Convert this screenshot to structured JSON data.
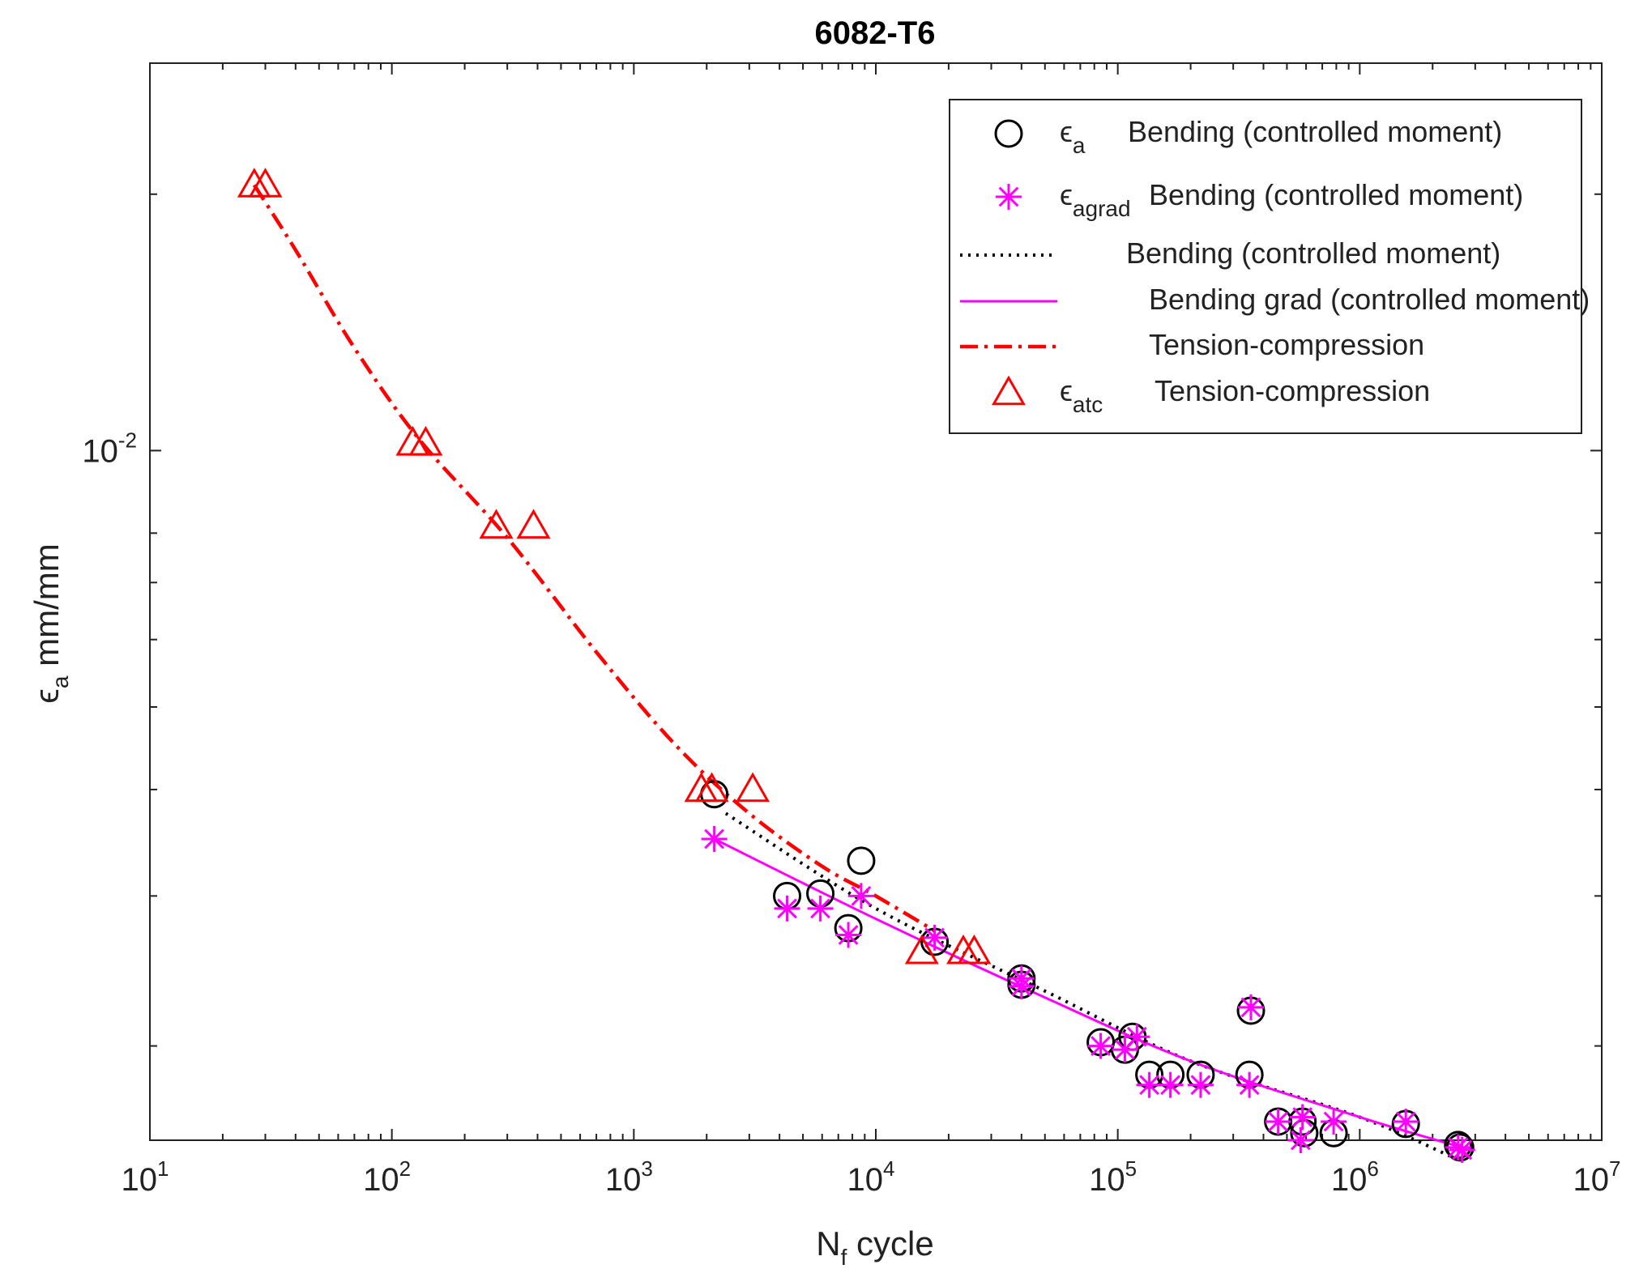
{
  "chart_data": {
    "type": "scatter",
    "title": "6082-T6",
    "xlabel": {
      "main": "N",
      "sub": "f",
      "rest": " cycle"
    },
    "ylabel": {
      "main": "ϵ",
      "sub": "a",
      "rest": " mm/mm"
    },
    "xscale": "log",
    "yscale": "log",
    "xlim": [
      10,
      10000000
    ],
    "ylim": [
      0.00155,
      0.0285
    ],
    "x_ticks": [
      {
        "value": 10,
        "base": "10",
        "exp": "1"
      },
      {
        "value": 100,
        "base": "10",
        "exp": "2"
      },
      {
        "value": 1000,
        "base": "10",
        "exp": "3"
      },
      {
        "value": 10000,
        "base": "10",
        "exp": "4"
      },
      {
        "value": 100000,
        "base": "10",
        "exp": "5"
      },
      {
        "value": 1000000,
        "base": "10",
        "exp": "6"
      },
      {
        "value": 10000000,
        "base": "10",
        "exp": "7"
      }
    ],
    "y_ticks": [
      {
        "value": 0.01,
        "base": "10",
        "exp": "-2"
      }
    ],
    "y_minor_ticks": [
      0.002,
      0.003,
      0.004,
      0.005,
      0.006,
      0.007,
      0.008,
      0.02
    ],
    "grid": false,
    "legend_position": "top-right",
    "series": [
      {
        "name": "Bending (controlled moment)",
        "legend_symbol": "ϵ",
        "legend_sub": "a",
        "marker": "circle",
        "color": "#000000",
        "points": [
          [
            2150,
            0.00395
          ],
          [
            4300,
            0.003
          ],
          [
            5900,
            0.00302
          ],
          [
            7700,
            0.00275
          ],
          [
            8700,
            0.0033
          ],
          [
            17500,
            0.00265
          ],
          [
            40000,
            0.0024
          ],
          [
            40000,
            0.00236
          ],
          [
            85000,
            0.00202
          ],
          [
            107000,
            0.00198
          ],
          [
            115000,
            0.00205
          ],
          [
            135000,
            0.00185
          ],
          [
            165000,
            0.00185
          ],
          [
            220000,
            0.00185
          ],
          [
            350000,
            0.00185
          ],
          [
            355000,
            0.0022
          ],
          [
            460000,
            0.00163
          ],
          [
            580000,
            0.00163
          ],
          [
            590000,
            0.00158
          ],
          [
            780000,
            0.00158
          ],
          [
            1550000,
            0.00162
          ],
          [
            2550000,
            0.00153
          ],
          [
            2600000,
            0.00152
          ]
        ]
      },
      {
        "name": "Bending (controlled moment)",
        "legend_symbol": "ϵ",
        "legend_sub": "agrad",
        "marker": "asterisk",
        "color": "#ff00ff",
        "points": [
          [
            2150,
            0.0035
          ],
          [
            4300,
            0.0029
          ],
          [
            5900,
            0.0029
          ],
          [
            7700,
            0.0027
          ],
          [
            8700,
            0.003
          ],
          [
            17500,
            0.00268
          ],
          [
            40000,
            0.0024
          ],
          [
            40000,
            0.00235
          ],
          [
            85000,
            0.002
          ],
          [
            107000,
            0.00198
          ],
          [
            120000,
            0.00205
          ],
          [
            135000,
            0.0018
          ],
          [
            165000,
            0.0018
          ],
          [
            220000,
            0.0018
          ],
          [
            350000,
            0.0018
          ],
          [
            355000,
            0.00222
          ],
          [
            460000,
            0.00163
          ],
          [
            580000,
            0.00165
          ],
          [
            570000,
            0.00155
          ],
          [
            780000,
            0.00163
          ],
          [
            1550000,
            0.00163
          ],
          [
            2550000,
            0.00152
          ],
          [
            2650000,
            0.00151
          ]
        ]
      },
      {
        "name": "Tension-compression",
        "legend_symbol": "ϵ",
        "legend_sub": "atc",
        "marker": "triangle",
        "color": "#ff0000",
        "points": [
          [
            27,
            0.0205
          ],
          [
            30,
            0.0205
          ],
          [
            122,
            0.0102
          ],
          [
            138,
            0.0102
          ],
          [
            270,
            0.00815
          ],
          [
            385,
            0.00815
          ],
          [
            1900,
            0.004
          ],
          [
            2100,
            0.004
          ],
          [
            3100,
            0.004
          ],
          [
            15500,
            0.00258
          ],
          [
            23000,
            0.00258
          ],
          [
            25500,
            0.00258
          ]
        ]
      }
    ],
    "fit_lines": [
      {
        "name": "Bending (controlled moment)",
        "style": "dotted",
        "color": "#000000",
        "points": [
          [
            2400,
            0.00375
          ],
          [
            10000,
            0.0029
          ],
          [
            50000,
            0.00232
          ],
          [
            200000,
            0.00192
          ],
          [
            1000000,
            0.00165
          ],
          [
            2550000,
            0.00147
          ]
        ]
      },
      {
        "name": "Bending grad (controlled moment)",
        "style": "solid",
        "color": "#ff00ff",
        "points": [
          [
            2150,
            0.0035
          ],
          [
            10000,
            0.00282
          ],
          [
            50000,
            0.00228
          ],
          [
            200000,
            0.00192
          ],
          [
            1000000,
            0.00165
          ],
          [
            2650000,
            0.00152
          ]
        ]
      },
      {
        "name": "Tension-compression",
        "style": "dash-dot",
        "color": "#ff0000",
        "points": [
          [
            27,
            0.0205
          ],
          [
            40,
            0.0172
          ],
          [
            70,
            0.0132
          ],
          [
            130,
            0.0103
          ],
          [
            300,
            0.0079
          ],
          [
            700,
            0.0058
          ],
          [
            1500,
            0.0045
          ],
          [
            3000,
            0.00375
          ],
          [
            6000,
            0.00325
          ],
          [
            10000,
            0.003
          ],
          [
            17500,
            0.00273
          ]
        ]
      }
    ],
    "legend": [
      {
        "kind": "marker",
        "marker": "circle",
        "color": "#000000",
        "symbol": "ϵ",
        "sub": "a",
        "label": "Bending (controlled moment)"
      },
      {
        "kind": "marker",
        "marker": "asterisk",
        "color": "#ff00ff",
        "symbol": "ϵ",
        "sub": "agrad",
        "label": "Bending (controlled moment)"
      },
      {
        "kind": "line",
        "style": "dotted",
        "color": "#000000",
        "label": "Bending (controlled moment)"
      },
      {
        "kind": "line",
        "style": "solid",
        "color": "#ff00ff",
        "label": "Bending grad (controlled moment)"
      },
      {
        "kind": "line",
        "style": "dash-dot",
        "color": "#ff0000",
        "label": "Tension-compression"
      },
      {
        "kind": "marker",
        "marker": "triangle",
        "color": "#ff0000",
        "symbol": "ϵ",
        "sub": "atc",
        "label": "Tension-compression"
      }
    ]
  }
}
